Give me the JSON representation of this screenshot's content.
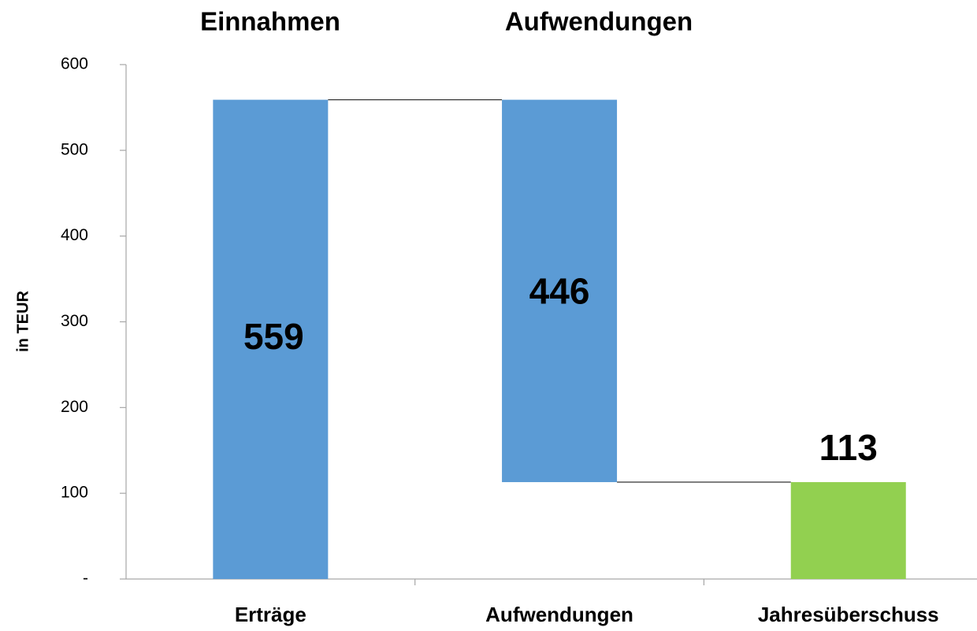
{
  "chart_data": {
    "type": "waterfall",
    "annotations": [
      "Einnahmen",
      "Aufwendungen"
    ],
    "y_label": "in TEUR",
    "categories": [
      "Erträge",
      "Aufwendungen",
      "Jahresüberschuss"
    ],
    "values": [
      559,
      446,
      113
    ],
    "steps": [
      "increase",
      "decrease",
      "total"
    ],
    "colors": [
      "#5b9bd5",
      "#5b9bd5",
      "#92d050"
    ],
    "ylim": [
      0,
      600
    ],
    "yticks": [
      {
        "value": 0,
        "label": "-"
      },
      100,
      200,
      300,
      400,
      500,
      600
    ],
    "grid": false
  }
}
